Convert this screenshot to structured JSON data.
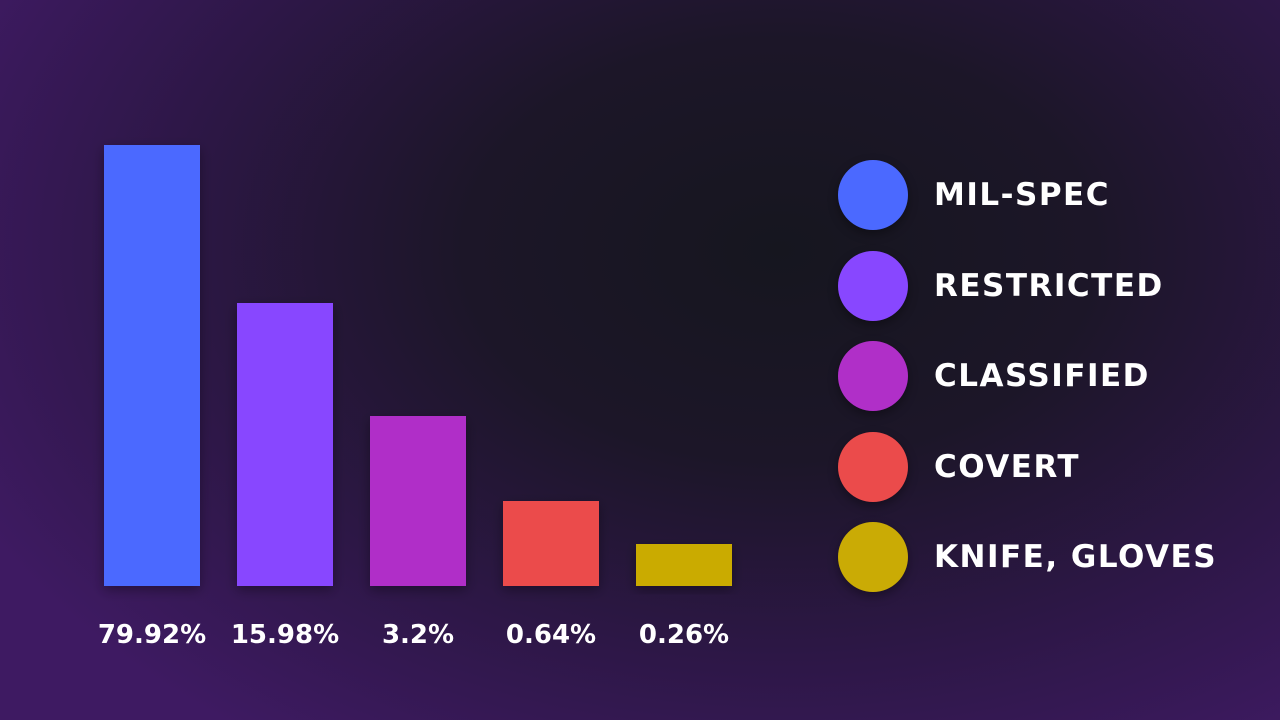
{
  "chart_data": {
    "type": "bar",
    "categories": [
      "Mil-Spec",
      "Restricted",
      "Classified",
      "Covert",
      "Knife, Gloves"
    ],
    "values": [
      79.92,
      15.98,
      3.2,
      0.64,
      0.26
    ],
    "data_labels": [
      "79.92%",
      "15.98%",
      "3.2%",
      "0.64%",
      "0.26%"
    ],
    "colors": [
      "#4b69ff",
      "#8847ff",
      "#b02fc8",
      "#eb4b4b",
      "#caab05"
    ],
    "title": "",
    "xlabel": "",
    "ylabel": "",
    "grid": false,
    "legend": {
      "placement": "right",
      "entries": [
        "MIL-SPEC",
        "RESTRICTED",
        "CLASSIFIED",
        "COVERT",
        "KNIFE, GLOVES"
      ]
    }
  }
}
